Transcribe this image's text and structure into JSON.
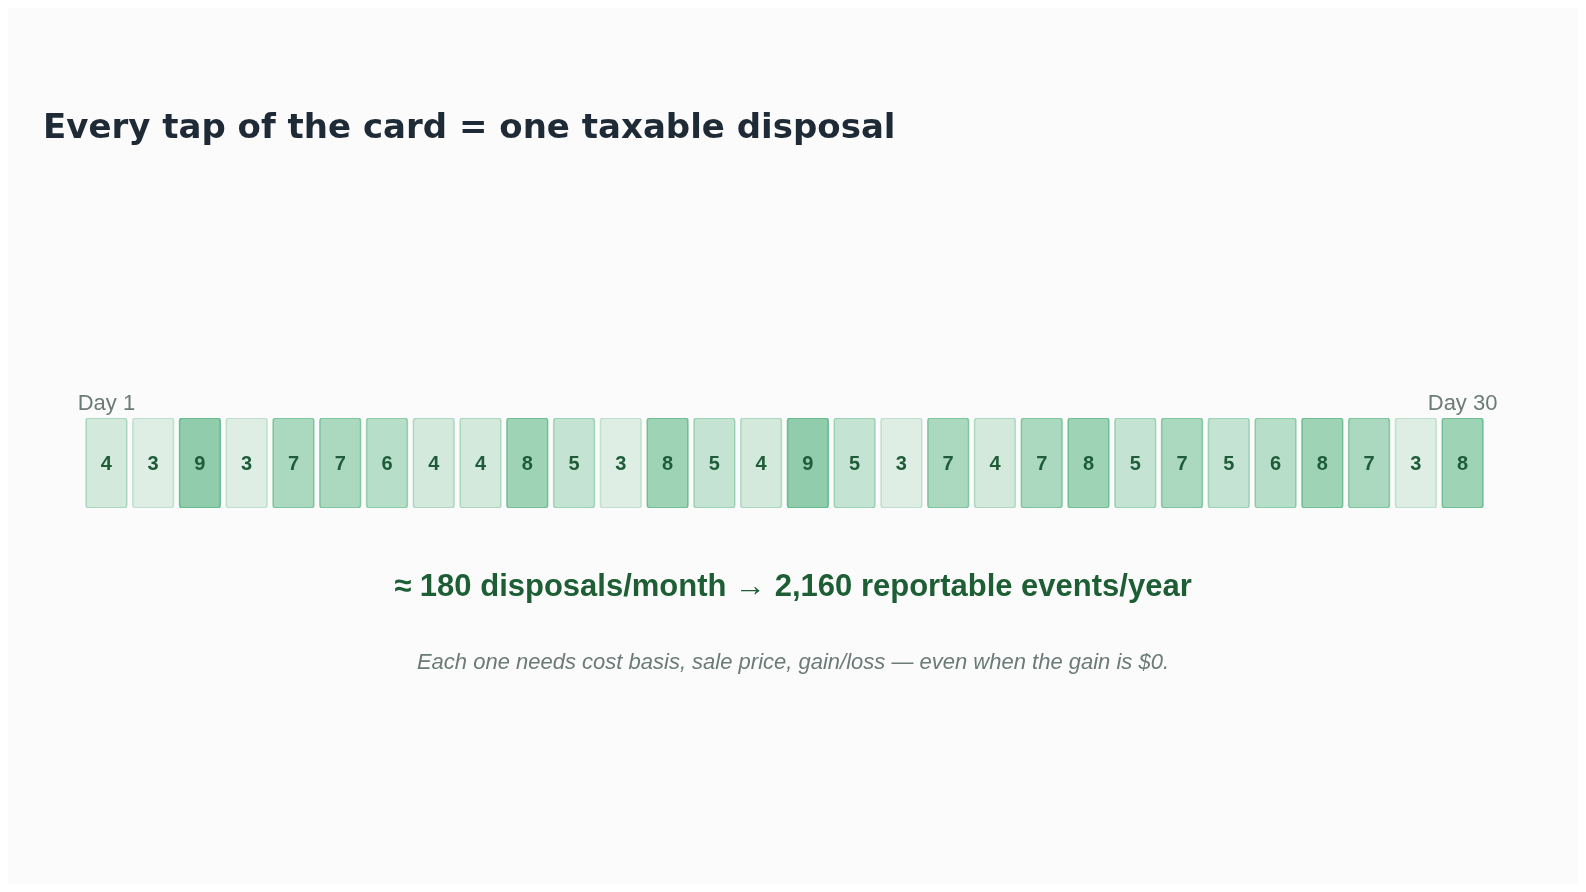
{
  "chart_data": {
    "type": "heatmap",
    "title": "Every tap of the card = one taxable disposal",
    "categories": [
      "Day 1",
      null,
      null,
      null,
      null,
      null,
      null,
      null,
      null,
      null,
      null,
      null,
      null,
      null,
      null,
      null,
      null,
      null,
      null,
      null,
      null,
      null,
      null,
      null,
      null,
      null,
      null,
      null,
      null,
      "Day 30"
    ],
    "y_categories": [
      null
    ],
    "cells": [
      [
        4,
        3,
        9,
        3,
        7,
        7,
        6,
        4,
        4,
        8,
        5,
        3,
        8,
        5,
        4,
        9,
        5,
        3,
        7,
        4,
        7,
        8,
        5,
        7,
        5,
        6,
        8,
        7,
        3,
        8
      ]
    ],
    "color": "#3aa86b",
    "data_labels": true,
    "annotations": [
      "≈ 180 disposals/month → 2,160 reportable events/year",
      "Each one needs cost basis, sale price, gain/loss — even when the gain is $0."
    ]
  }
}
